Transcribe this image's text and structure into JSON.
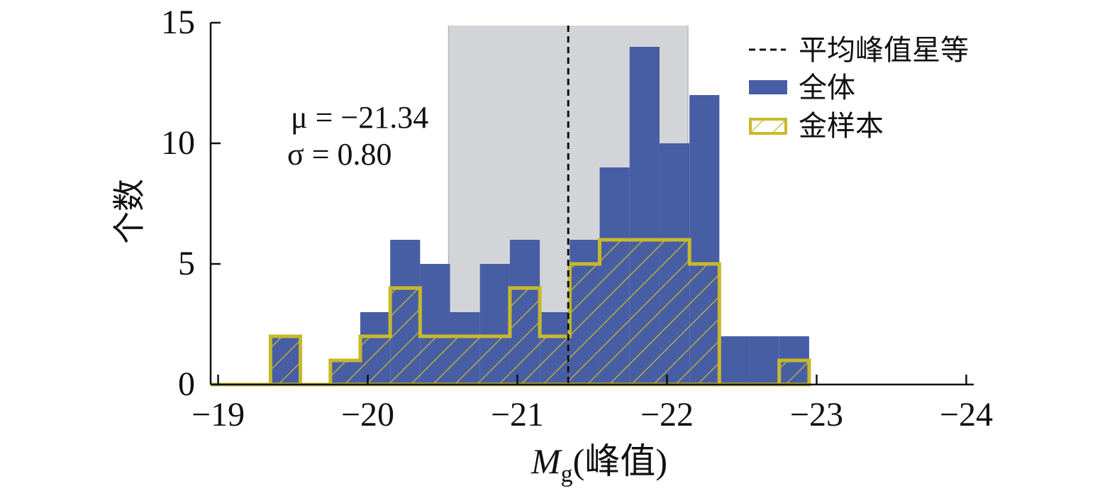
{
  "chart_data": {
    "type": "bar",
    "xlabel_symbol": "M",
    "xlabel_subscript": "g",
    "xlabel_suffix": "(峰值)",
    "ylabel": "个数",
    "xlim": [
      -18.95,
      -24.05
    ],
    "ylim": [
      0,
      15
    ],
    "x_ticks": [
      -19,
      -20,
      -21,
      -22,
      -23,
      -24
    ],
    "x_tick_labels": [
      "−19",
      "−20",
      "−21",
      "−22",
      "−23",
      "−24"
    ],
    "y_ticks": [
      0,
      5,
      10,
      15
    ],
    "y_tick_labels": [
      "0",
      "5",
      "10",
      "15"
    ],
    "bin_edges": [
      -18.95,
      -19.15,
      -19.35,
      -19.55,
      -19.75,
      -19.95,
      -20.15,
      -20.35,
      -20.55,
      -20.75,
      -20.95,
      -21.15,
      -21.35,
      -21.55,
      -21.75,
      -21.95,
      -22.15,
      -22.35,
      -22.55,
      -22.75,
      -22.95
    ],
    "series": [
      {
        "name": "全体",
        "style": "filled",
        "color": "#475ea5",
        "values": [
          0,
          0,
          2,
          0,
          1,
          3,
          6,
          5,
          3,
          5,
          6,
          3,
          6,
          9,
          14,
          10,
          12,
          2,
          2,
          2
        ]
      },
      {
        "name": "金样本",
        "style": "hatched-step",
        "color": "#c8b92c",
        "values": [
          0,
          0,
          2,
          0,
          1,
          2,
          4,
          2,
          2,
          2,
          4,
          2,
          5,
          6,
          6,
          6,
          5,
          0,
          0,
          1
        ]
      }
    ],
    "mean_line": {
      "name": "平均峰值星等",
      "value": -21.34,
      "color": "#111111",
      "style": "dashed"
    },
    "shaded_band": {
      "range": [
        -20.54,
        -22.14
      ],
      "color": "#d3d4d7"
    },
    "annotation_lines": [
      "μ = −21.34",
      "σ = 0.80"
    ],
    "legend_position": "top-right",
    "grid": false
  }
}
